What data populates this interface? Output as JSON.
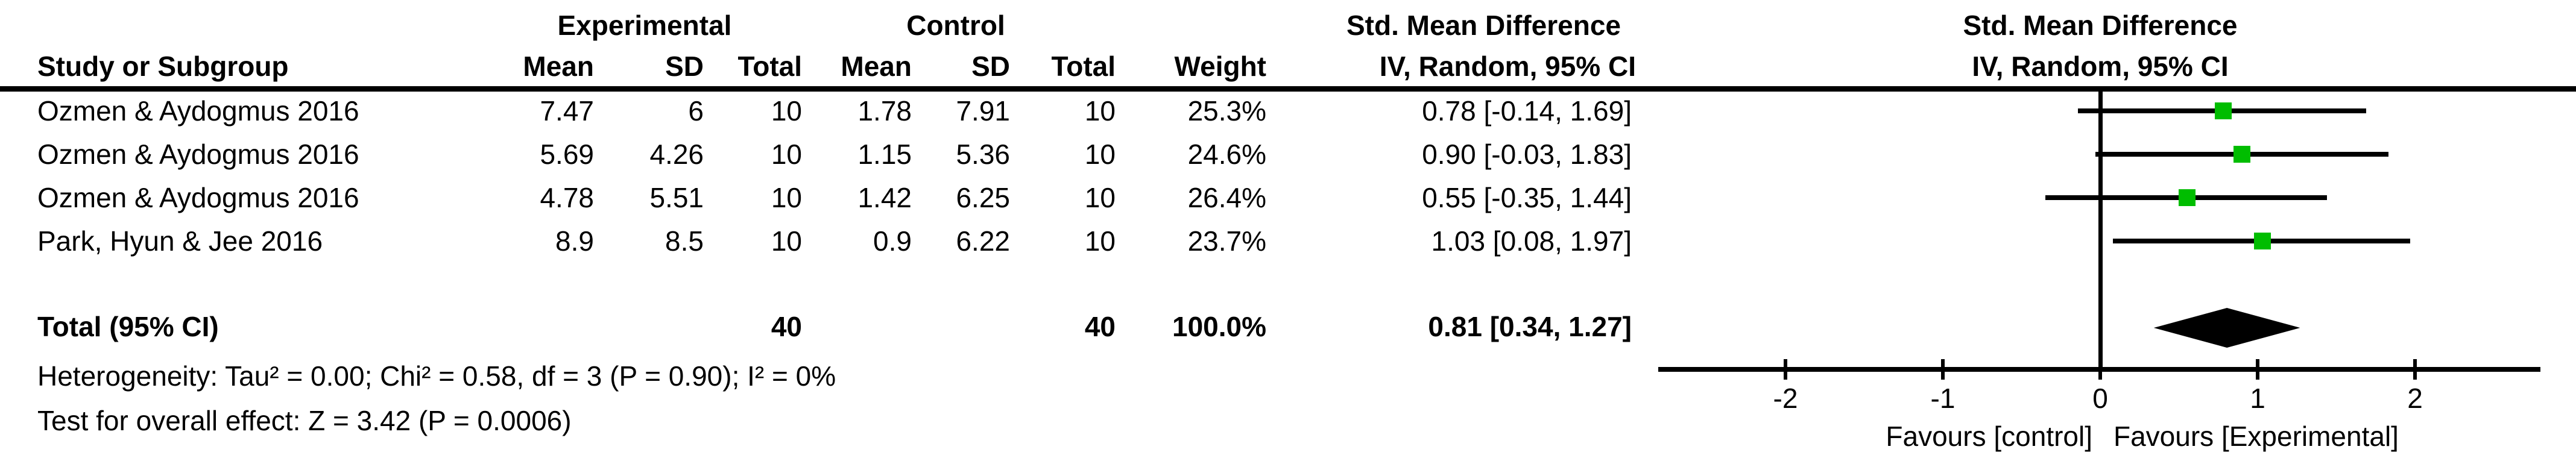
{
  "table": {
    "headers": {
      "study": "Study or Subgroup",
      "group_experimental": "Experimental",
      "group_control": "Control",
      "smd_table_line1": "Std. Mean Difference",
      "smd_table_line2": "IV, Random, 95% CI",
      "smd_plot_line1": "Std. Mean Difference",
      "smd_plot_line2": "IV, Random, 95% CI",
      "mean": "Mean",
      "sd": "SD",
      "total": "Total",
      "weight": "Weight"
    },
    "rows": [
      {
        "study": "Ozmen & Aydogmus 2016",
        "exp_mean": "7.47",
        "exp_sd": "6",
        "exp_total": "10",
        "ctrl_mean": "1.78",
        "ctrl_sd": "7.91",
        "ctrl_total": "10",
        "weight": "25.3%",
        "ci_text": "0.78 [-0.14, 1.69]"
      },
      {
        "study": "Ozmen & Aydogmus 2016",
        "exp_mean": "5.69",
        "exp_sd": "4.26",
        "exp_total": "10",
        "ctrl_mean": "1.15",
        "ctrl_sd": "5.36",
        "ctrl_total": "10",
        "weight": "24.6%",
        "ci_text": "0.90 [-0.03, 1.83]"
      },
      {
        "study": "Ozmen & Aydogmus 2016",
        "exp_mean": "4.78",
        "exp_sd": "5.51",
        "exp_total": "10",
        "ctrl_mean": "1.42",
        "ctrl_sd": "6.25",
        "ctrl_total": "10",
        "weight": "26.4%",
        "ci_text": "0.55 [-0.35, 1.44]"
      },
      {
        "study": "Park, Hyun & Jee 2016",
        "exp_mean": "8.9",
        "exp_sd": "8.5",
        "exp_total": "10",
        "ctrl_mean": "0.9",
        "ctrl_sd": "6.22",
        "ctrl_total": "10",
        "weight": "23.7%",
        "ci_text": "1.03 [0.08, 1.97]"
      }
    ],
    "total_row": {
      "label": "Total (95% CI)",
      "exp_total": "40",
      "ctrl_total": "40",
      "weight": "100.0%",
      "ci_text": "0.81 [0.34, 1.27]"
    },
    "heterogeneity": "Heterogeneity: Tau² = 0.00; Chi² = 0.58, df = 3 (P = 0.90); I² = 0%",
    "overall_effect": "Test for overall effect: Z = 3.42 (P = 0.0006)"
  },
  "chart_data": {
    "type": "forest",
    "x_ticks": [
      -2,
      -1,
      0,
      1,
      2
    ],
    "axis_range": [
      -2.8,
      2.8
    ],
    "studies": [
      {
        "name": "Ozmen & Aydogmus 2016",
        "estimate": 0.78,
        "ci_low": -0.14,
        "ci_high": 1.69,
        "weight_pct": 25.3
      },
      {
        "name": "Ozmen & Aydogmus 2016",
        "estimate": 0.9,
        "ci_low": -0.03,
        "ci_high": 1.83,
        "weight_pct": 24.6
      },
      {
        "name": "Ozmen & Aydogmus 2016",
        "estimate": 0.55,
        "ci_low": -0.35,
        "ci_high": 1.44,
        "weight_pct": 26.4
      },
      {
        "name": "Park, Hyun & Jee 2016",
        "estimate": 1.03,
        "ci_low": 0.08,
        "ci_high": 1.97,
        "weight_pct": 23.7
      }
    ],
    "total": {
      "estimate": 0.81,
      "ci_low": 0.34,
      "ci_high": 1.27
    },
    "favours_left": "Favours [control]",
    "favours_right": "Favours [Experimental]",
    "marker_color": "#00BD00",
    "line_color": "#000000"
  }
}
